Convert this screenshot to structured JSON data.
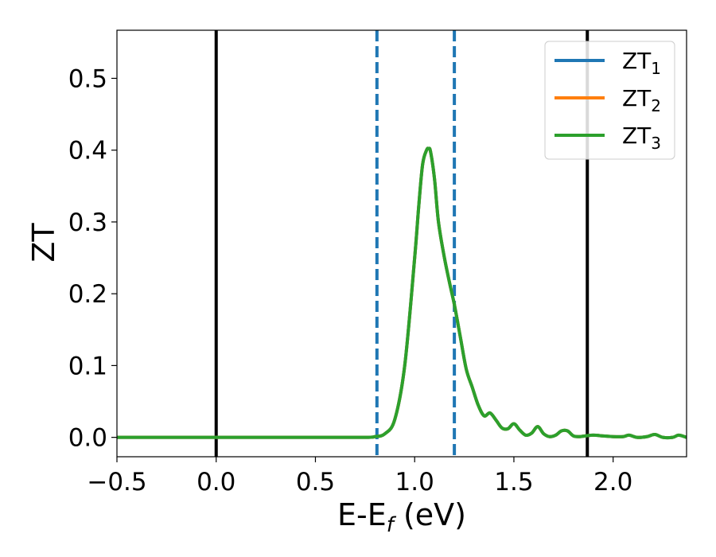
{
  "chart_data": {
    "type": "line",
    "xlabel_main": "E-E",
    "xlabel_sub": "f",
    "xlabel_unit": " (eV)",
    "ylabel": "ZT",
    "xlim": [
      -0.5,
      2.37
    ],
    "ylim": [
      -0.027,
      0.567
    ],
    "xticks": [
      {
        "value": -0.5,
        "label": "−0.5"
      },
      {
        "value": 0.0,
        "label": "0.0"
      },
      {
        "value": 0.5,
        "label": "0.5"
      },
      {
        "value": 1.0,
        "label": "1.0"
      },
      {
        "value": 1.5,
        "label": "1.5"
      },
      {
        "value": 2.0,
        "label": "2.0"
      }
    ],
    "yticks": [
      {
        "value": 0.0,
        "label": "0.0"
      },
      {
        "value": 0.1,
        "label": "0.1"
      },
      {
        "value": 0.2,
        "label": "0.2"
      },
      {
        "value": 0.3,
        "label": "0.3"
      },
      {
        "value": 0.4,
        "label": "0.4"
      },
      {
        "value": 0.5,
        "label": "0.5"
      }
    ],
    "vlines": [
      {
        "x": 0.0,
        "color": "#000000",
        "style": "solid"
      },
      {
        "x": 1.87,
        "color": "#000000",
        "style": "solid"
      },
      {
        "x": 0.81,
        "color": "#1f77b4",
        "style": "dashed"
      },
      {
        "x": 1.2,
        "color": "#1f77b4",
        "style": "dashed"
      }
    ],
    "legend_position": "top-right",
    "series": [
      {
        "name_main": "ZT",
        "name_sub": "1",
        "color": "#1f77b4"
      },
      {
        "name_main": "ZT",
        "name_sub": "2",
        "color": "#ff7f0e"
      },
      {
        "name_main": "ZT",
        "name_sub": "3",
        "color": "#2ca02c"
      }
    ],
    "x": [
      -0.5,
      0.0,
      0.5,
      0.75,
      0.8,
      0.85,
      0.9,
      0.95,
      1.0,
      1.02,
      1.04,
      1.06,
      1.07,
      1.08,
      1.1,
      1.12,
      1.15,
      1.18,
      1.2,
      1.23,
      1.26,
      1.29,
      1.32,
      1.35,
      1.38,
      1.41,
      1.44,
      1.47,
      1.5,
      1.53,
      1.56,
      1.59,
      1.62,
      1.65,
      1.68,
      1.71,
      1.74,
      1.77,
      1.8,
      1.83,
      1.86,
      1.9,
      1.95,
      2.0,
      2.05,
      2.08,
      2.12,
      2.17,
      2.21,
      2.25,
      2.3,
      2.33,
      2.37
    ],
    "y": [
      0.0,
      0.0,
      0.0,
      0.0,
      0.001,
      0.005,
      0.025,
      0.1,
      0.25,
      0.32,
      0.38,
      0.4,
      0.402,
      0.398,
      0.36,
      0.3,
      0.25,
      0.21,
      0.185,
      0.14,
      0.095,
      0.07,
      0.045,
      0.03,
      0.034,
      0.024,
      0.013,
      0.012,
      0.019,
      0.01,
      0.003,
      0.006,
      0.015,
      0.005,
      0.001,
      0.003,
      0.009,
      0.009,
      0.002,
      0.001,
      0.002,
      0.003,
      0.002,
      0.001,
      0.001,
      0.003,
      0.0,
      0.001,
      0.004,
      0.0,
      0.0,
      0.003,
      0.0
    ]
  }
}
